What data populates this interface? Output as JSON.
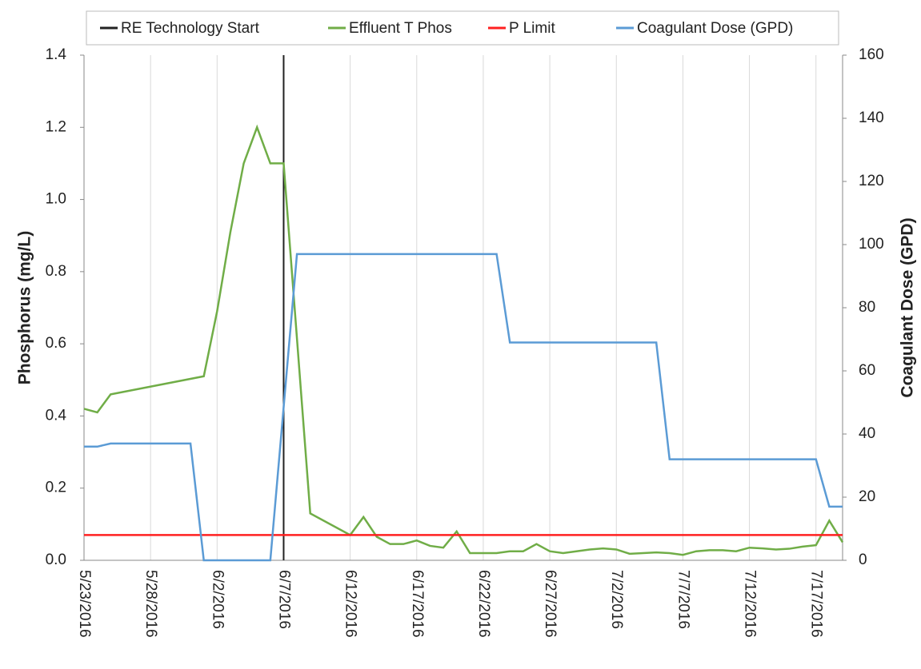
{
  "chart_data": {
    "type": "line",
    "ylabel": "Phosphorus (mg/L)",
    "y2label": "Coagulant Dose (GPD)",
    "xlim": [
      "2016-05-23",
      "2016-07-19"
    ],
    "xticks": [
      {
        "value": "2016-05-23",
        "label": "5/23/2016"
      },
      {
        "value": "2016-05-28",
        "label": "5/28/2016"
      },
      {
        "value": "2016-06-02",
        "label": "6/2/2016"
      },
      {
        "value": "2016-06-07",
        "label": "6/7/2016"
      },
      {
        "value": "2016-06-12",
        "label": "6/12/2016"
      },
      {
        "value": "2016-06-17",
        "label": "6/17/2016"
      },
      {
        "value": "2016-06-22",
        "label": "6/22/2016"
      },
      {
        "value": "2016-06-27",
        "label": "6/27/2016"
      },
      {
        "value": "2016-07-02",
        "label": "7/2/2016"
      },
      {
        "value": "2016-07-07",
        "label": "7/7/2016"
      },
      {
        "value": "2016-07-12",
        "label": "7/12/2016"
      },
      {
        "value": "2016-07-17",
        "label": "7/17/2016"
      }
    ],
    "ylim": [
      0,
      1.4
    ],
    "yticks": [
      {
        "value": 0,
        "label": "0.0"
      },
      0.2,
      0.4,
      0.6,
      0.8,
      {
        "value": 1,
        "label": "1.0"
      },
      1.2,
      1.4
    ],
    "y2lim": [
      0,
      160
    ],
    "y2ticks": [
      0,
      20,
      40,
      60,
      80,
      100,
      120,
      140,
      160
    ],
    "grid": "x",
    "legend": "top",
    "series": [
      {
        "name": "RE Technology Start",
        "color": "#222222",
        "kind": "vline",
        "x": [
          "2016-06-07"
        ]
      },
      {
        "name": "Effluent T Phos",
        "color": "#70ad47",
        "kind": "line",
        "x": [
          "2016-05-23",
          "2016-05-24",
          "2016-05-25",
          "2016-06-01",
          "2016-06-02",
          "2016-06-03",
          "2016-06-04",
          "2016-06-05",
          "2016-06-06",
          "2016-06-07",
          "2016-06-09",
          "2016-06-12",
          "2016-06-13",
          "2016-06-14",
          "2016-06-15",
          "2016-06-16",
          "2016-06-17",
          "2016-06-18",
          "2016-06-19",
          "2016-06-20",
          "2016-06-21",
          "2016-06-22",
          "2016-06-23",
          "2016-06-24",
          "2016-06-25",
          "2016-06-26",
          "2016-06-27",
          "2016-06-28",
          "2016-06-29",
          "2016-06-30",
          "2016-07-01",
          "2016-07-02",
          "2016-07-03",
          "2016-07-04",
          "2016-07-05",
          "2016-07-06",
          "2016-07-07",
          "2016-07-08",
          "2016-07-09",
          "2016-07-10",
          "2016-07-11",
          "2016-07-12",
          "2016-07-13",
          "2016-07-14",
          "2016-07-15",
          "2016-07-16",
          "2016-07-17",
          "2016-07-18",
          "2016-07-19"
        ],
        "values": [
          0.42,
          0.41,
          0.46,
          0.51,
          0.69,
          0.91,
          1.1,
          1.2,
          1.1,
          1.1,
          0.13,
          0.07,
          0.12,
          0.065,
          0.045,
          0.045,
          0.055,
          0.04,
          0.035,
          0.08,
          0.02,
          0.02,
          0.02,
          0.025,
          0.025,
          0.045,
          0.025,
          0.02,
          0.025,
          0.03,
          0.033,
          0.03,
          0.018,
          0.02,
          0.022,
          0.02,
          0.015,
          0.025,
          0.028,
          0.028,
          0.025,
          0.035,
          0.033,
          0.03,
          0.032,
          0.038,
          0.042,
          0.11,
          0.05
        ]
      },
      {
        "name": "P Limit",
        "color": "#ff2020",
        "kind": "hline",
        "values": [
          0.07
        ]
      },
      {
        "name": "Coagulant Dose (GPD)",
        "color": "#5b9bd5",
        "kind": "line",
        "axis": "y2",
        "x": [
          "2016-05-23",
          "2016-05-24",
          "2016-05-25",
          "2016-05-31",
          "2016-06-01",
          "2016-06-06",
          "2016-06-08",
          "2016-06-23",
          "2016-06-24",
          "2016-07-05",
          "2016-07-06",
          "2016-07-17",
          "2016-07-18",
          "2016-07-19"
        ],
        "values": [
          36,
          36,
          37,
          37,
          0,
          0,
          97,
          97,
          69,
          69,
          32,
          32,
          17,
          17
        ]
      }
    ]
  }
}
